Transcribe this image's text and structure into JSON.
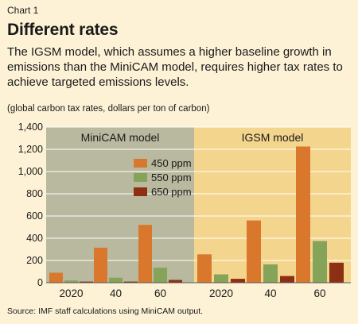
{
  "header": {
    "kicker": "Chart 1",
    "title": "Different rates",
    "subtitle": "The IGSM model, which assumes a higher baseline growth in emissions than the MiniCAM model, requires higher tax rates to achieve targeted emissions levels.",
    "units": "(global carbon tax rates, dollars per ton of carbon)",
    "source": "Source: IMF staff calculations using MiniCAM output."
  },
  "colors": {
    "panel_left": "#b9b99f",
    "panel_right": "#f4d58d",
    "series": [
      "#d9782c",
      "#86a35a",
      "#8c2f12"
    ]
  },
  "chart_data": {
    "type": "bar",
    "ylabel": "",
    "ylim": [
      0,
      1400
    ],
    "yticks": [
      0,
      200,
      400,
      600,
      800,
      1000,
      1200,
      1400
    ],
    "ytick_labels": [
      "0",
      "200",
      "400",
      "600",
      "800",
      "1,000",
      "1,200",
      "1,400"
    ],
    "grid": true,
    "legend_placement": "inside-left-panel",
    "panels": [
      {
        "name": "MiniCAM model",
        "categories": [
          "2020",
          "40",
          "60"
        ],
        "series": [
          {
            "name": "450 ppm",
            "values": [
              90,
              315,
              520
            ]
          },
          {
            "name": "550 ppm",
            "values": [
              20,
              45,
              135
            ]
          },
          {
            "name": "650 ppm",
            "values": [
              10,
              10,
              25
            ]
          }
        ]
      },
      {
        "name": "IGSM model",
        "categories": [
          "2020",
          "40",
          "60"
        ],
        "series": [
          {
            "name": "450 ppm",
            "values": [
              255,
              560,
              1225
            ]
          },
          {
            "name": "550 ppm",
            "values": [
              75,
              165,
              375
            ]
          },
          {
            "name": "650 ppm",
            "values": [
              35,
              60,
              180
            ]
          }
        ]
      }
    ]
  }
}
